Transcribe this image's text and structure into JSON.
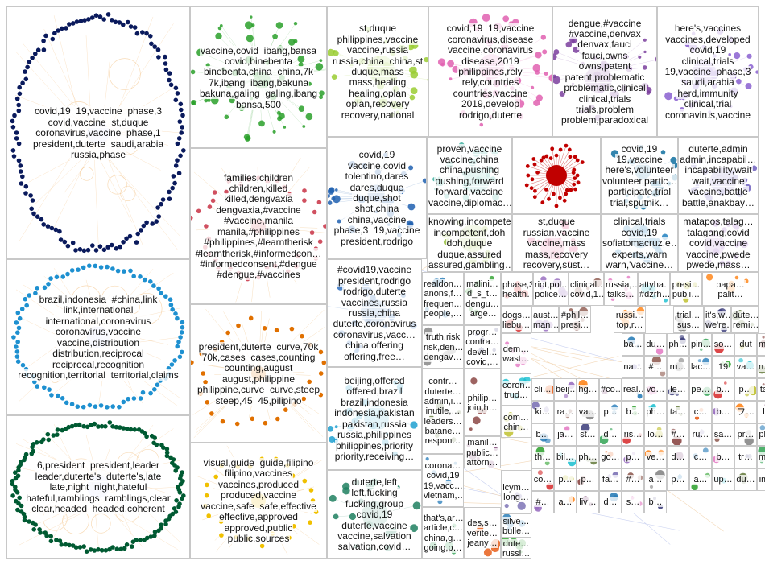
{
  "groups": [
    {
      "id": "g1",
      "color": "#0a1a5c",
      "lines": [
        "covid,19  19,vaccine  phase,3",
        "covid,vaccine  st,duque",
        "coronavirus,vaccine  phase,1",
        "president,duterte  saudi,arabia",
        "russia,phase"
      ]
    },
    {
      "id": "g2",
      "color": "#2aa02a",
      "lines": [
        "vaccine,covid  ibang,bansa",
        "covid,binebenta",
        "binebenta,china  china,7k",
        "7k,ibang  ibang,bakuna",
        "bakuna,galing  galing,ibang",
        "bansa,500"
      ]
    },
    {
      "id": "g3",
      "color": "#9acd32",
      "lines": [
        "st,duque",
        "philippines,vaccine",
        "vaccine,russia",
        "russia,china  china,st",
        "duque,mass",
        "mass,healing",
        "healing,oplan",
        "oplan,recovery",
        "recovery,national"
      ]
    },
    {
      "id": "g4",
      "color": "#e060b0",
      "lines": [
        "covid,19  19,vaccine",
        "coronavirus,disease",
        "vaccine,coronavirus",
        "disease,2019",
        "philippines,rely",
        "rely,countries",
        "countries,vaccine",
        "2019,develop",
        "rodrigo,duterte"
      ]
    },
    {
      "id": "g5",
      "color": "#7b3f9e",
      "lines": [
        "dengue,#vaccine",
        "#vaccine,denvax",
        "denvax,fauci",
        "fauci,owns",
        "owns,patent",
        "patent,problematic",
        "problematic,clinical",
        "clinical,trials",
        "trials,problem",
        "problem,paradoxical"
      ]
    },
    {
      "id": "g6",
      "color": "#8a60d0",
      "lines": [
        "here's,vaccines",
        "vaccines,developed",
        "covid,19",
        "clinical,trials",
        "19,vaccine  phase,3",
        "saudi,arabia",
        "herd,immunity",
        "clinical,trial",
        "coronavirus,vaccine"
      ]
    },
    {
      "id": "g7",
      "color": "#d05060",
      "lines": [
        "families,children",
        "children,killed",
        "killed,dengvaxia",
        "dengvaxia,#vaccine",
        "#vaccine,manila",
        "manila,#philippines",
        "#philippines,#learntherisk",
        "#learntherisk,#informedcon…",
        "#informedconsent,#dengue",
        "#dengue,#vaccines"
      ]
    },
    {
      "id": "g8",
      "color": "#2060b0",
      "lines": [
        "covid,19",
        "vaccine,covid",
        "tolentino,dares",
        "dares,duque",
        "duque,shot",
        "shot,china",
        "china,vaccine",
        "phase,3  19,vaccine",
        "president,rodrigo"
      ]
    },
    {
      "id": "g9",
      "color": "#40b0a0",
      "lines": [
        "proven,vaccine",
        "vaccine,china",
        "china,pushing",
        "pushing,forward",
        "forward,vaccine",
        "vaccine,diplomac…"
      ]
    },
    {
      "id": "g10",
      "color": "#c00000",
      "lines": []
    },
    {
      "id": "g11",
      "color": "#1070a0",
      "lines": [
        "covid,19",
        "19,vaccine",
        "here's,volunteer",
        "volunteer,partic…",
        "participate,trial",
        "trial,sputnik…"
      ]
    },
    {
      "id": "g12",
      "color": "#7060c0",
      "lines": [
        "duterte,admin",
        "admin,incapabil…",
        "incapability,wait",
        "wait,vaccine",
        "vaccine,battle",
        "battle,anakbay…"
      ]
    },
    {
      "id": "g13",
      "color": "#1e90d0",
      "lines": [
        "brazil,indonesia  #china,link",
        "link,international",
        "international,coronavirus",
        "coronavirus,vaccine",
        "vaccine,distribution",
        "distribution,reciprocal",
        "reciprocal,recognition",
        "recognition,territorial  territorial,claims"
      ]
    },
    {
      "id": "g14",
      "color": "#e07000",
      "lines": [
        "president,duterte  curve,70k",
        "70k,cases  cases,counting",
        "counting,august",
        "august,philippine",
        "philippine,curve  curve,steep",
        "steep,45  45,pilipino"
      ]
    },
    {
      "id": "g15",
      "color": "#005a32",
      "lines": [
        "6,president  president,leader",
        "leader,duterte's  duterte's,late",
        "late,night  night,hateful",
        "hateful,ramblings  ramblings,clear",
        "clear,headed  headed,coherent"
      ]
    },
    {
      "id": "g16",
      "color": "#f0c000",
      "lines": [
        "visual,guide  guide,filipino",
        "filipino,vaccines",
        "vaccines,produced",
        "produced,vaccine",
        "vaccine,safe  safe,effective",
        "effective,approved",
        "approved,public",
        "public,sources"
      ]
    },
    {
      "id": "g17",
      "color": "#98c040",
      "lines": [
        "knowing,incompete…",
        "incompetent,doh",
        "doh,duque",
        "duque,assured",
        "assured,gambling…"
      ]
    },
    {
      "id": "g18",
      "color": "#e04080",
      "lines": [
        "st,duque",
        "russian,vaccine",
        "vaccine,mass",
        "mass,recovery",
        "recovery,sust…"
      ]
    },
    {
      "id": "g19",
      "color": "#2080c0",
      "lines": [
        "clinical,trials",
        "covid,19",
        "sofiatomacruz,e…",
        "experts,warn",
        "warn,'vaccine…"
      ]
    },
    {
      "id": "g20",
      "color": "#9050c0",
      "lines": [
        "matapos,talag…",
        "talagang,covid",
        "covid,vaccine",
        "vaccine,pwede",
        "pwede,mass…"
      ]
    },
    {
      "id": "g21",
      "color": "#3070c0",
      "lines": [
        "#covid19,vaccine",
        "president,rodrigo",
        "rodrigo,duterte",
        "vaccines,russia",
        "russia,china",
        "duterte,coronavirus",
        "coronavirus,vacc…",
        "china,offering",
        "offering,free…"
      ]
    },
    {
      "id": "g22",
      "color": "#20a0d0",
      "lines": [
        "beijing,offered",
        "offered,brazil",
        "brazil,indonesia",
        "indonesia,pakistan",
        "pakistan,russia",
        "russia,philippines",
        "philippines,priority",
        "priority,receiving…"
      ]
    },
    {
      "id": "g23",
      "color": "#208060",
      "lines": [
        "duterte,left",
        "left,fucking",
        "fucking,group",
        "covid,19",
        "duterte,vaccine",
        "vaccine,salvation",
        "salvation,covid…"
      ]
    }
  ],
  "small_tiles": [
    [
      "realdon…",
      "anons,f…",
      "frequen…",
      "people,…"
    ],
    [
      "malini…",
      "d_s_t…",
      "dengu…",
      "large…"
    ],
    [
      "phase,3",
      "health…"
    ],
    [
      "riot,pol…",
      "police…"
    ],
    [
      "clinical…",
      "covid,1…"
    ],
    [
      "russia,…",
      "talks…"
    ],
    [
      "attyha…",
      "#dzrh…"
    ],
    [
      "presi…",
      "publi…"
    ],
    [
      "papa…",
      "palit…"
    ],
    [
      "truth,risk",
      "risk,den…",
      "dengav…"
    ],
    [
      "progr…",
      "contra…",
      "devel…",
      "covid,…"
    ],
    [
      "contr…",
      "duterte…",
      "admin,i…",
      "inutile,…",
      "leaders…",
      "batane…",
      "respon…"
    ],
    [
      "philip…",
      "join,h…"
    ],
    [
      "manil…",
      "public…",
      "attorn…"
    ],
    [
      "corona…",
      "covid,19",
      "19,vacc…",
      "vietnam,…"
    ],
    [
      "that's,ar…",
      "article,c…",
      "china,g…",
      "going,p…"
    ],
    [
      "des,s…",
      "verite…",
      "jeany…"
    ],
    [
      "icym…",
      "long…"
    ],
    [
      "silve…",
      "bulle…"
    ],
    [
      "dute…",
      "russi…"
    ],
    [
      "dogs…",
      "liebu…"
    ],
    [
      "aust…",
      "man…"
    ],
    [
      "#phil…",
      "presi…"
    ],
    [
      "dem…",
      "wast…"
    ],
    [
      "coron…",
      "trud…"
    ],
    [
      "com…",
      "chin…"
    ],
    [
      "russi…",
      "top,r…"
    ],
    [
      "trial…",
      "sus…"
    ],
    [
      "it's,w…",
      "we're…"
    ],
    [
      "dute…",
      "remi…"
    ]
  ],
  "micro_labels": [
    "ba…",
    "du…",
    "ph…",
    "pin…",
    "so…",
    "dut",
    "ma…",
    "na…",
    "#…",
    "ru…",
    "lac…",
    "19",
    "va…",
    "rus…",
    "cli…",
    "beij…",
    "hg…",
    "#co…",
    "real…",
    "vo…",
    "le…",
    "pe…",
    "b…",
    "p…",
    "ta…",
    "ki…",
    "ra…",
    "va…",
    "p…",
    "b…",
    "ph…",
    "ta…",
    "c…",
    "b…",
    "フ…",
    "l…",
    "b…",
    "ja…",
    "st…",
    "d…",
    "ris…",
    "lo…",
    "#…",
    "ru…",
    "sa…",
    "pr…",
    "ph…",
    "th…",
    "bil…",
    "ph…",
    "go…",
    "p…",
    "ve…",
    "d…",
    "c…",
    "b…",
    "tr…",
    "ma…",
    "co…",
    "p…",
    "p…",
    "fa…",
    "#…",
    "a…",
    "p…",
    "a…",
    "up…",
    "du…",
    "im…",
    "#…",
    "a…",
    "liv…",
    "d…",
    "s…",
    "b…"
  ]
}
